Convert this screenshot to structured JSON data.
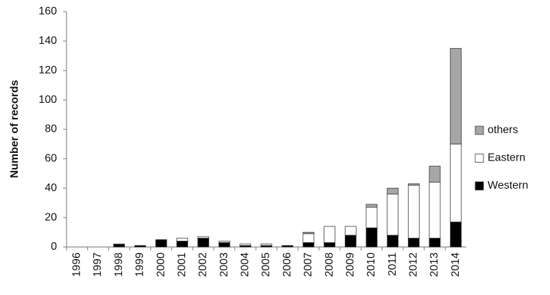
{
  "chart_data": {
    "type": "stacked-bar",
    "y_label": "Number of records",
    "categories": [
      "1996",
      "1997",
      "1998",
      "1999",
      "2000",
      "2001",
      "2002",
      "2003",
      "2004",
      "2005",
      "2006",
      "2007",
      "2008",
      "2009",
      "2010",
      "2011",
      "2012",
      "2013",
      "2014"
    ],
    "series": [
      {
        "name": "Western",
        "color": "#000000",
        "values": [
          0,
          0,
          2,
          1,
          5,
          4,
          6,
          3,
          1,
          1,
          1,
          3,
          3,
          8,
          13,
          8,
          6,
          6,
          17
        ]
      },
      {
        "name": "Eastern",
        "color": "#ffffff",
        "values": [
          0,
          0,
          0,
          0,
          0,
          2,
          1,
          1,
          1,
          1,
          0,
          6,
          11,
          6,
          14,
          28,
          36,
          38,
          53
        ]
      },
      {
        "name": "others",
        "color": "#a6a6a6",
        "values": [
          0,
          0,
          0,
          0,
          0,
          0,
          0,
          0,
          0,
          0,
          0,
          1,
          0,
          0,
          2,
          4,
          1,
          11,
          65
        ]
      }
    ],
    "ylim": [
      0,
      160
    ],
    "yticks": [
      0,
      20,
      40,
      60,
      80,
      100,
      120,
      140,
      160
    ],
    "grid": false,
    "legend": "right"
  }
}
